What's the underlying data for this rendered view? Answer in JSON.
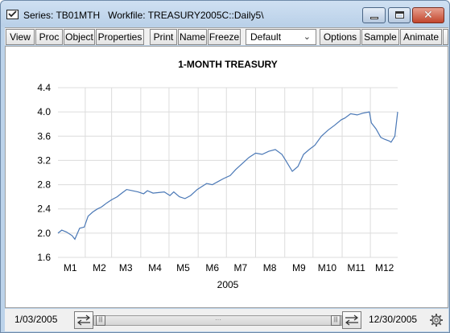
{
  "window": {
    "title": "Series: TB01MTH   Workfile: TREASURY2005C::Daily5\\"
  },
  "toolbar": {
    "buttons": [
      "View",
      "Proc",
      "Object",
      "Properties",
      "Print",
      "Name",
      "Freeze",
      "Options",
      "Sample",
      "Animate"
    ],
    "sample_value": "Default"
  },
  "statusbar": {
    "start_date": "1/03/2005",
    "end_date": "12/30/2005"
  },
  "icons": {
    "window": "checkbox-window-icon",
    "swap": "swap-arrows-icon",
    "gear": "gear-icon",
    "dropdown": "chevron-down-icon"
  },
  "colors": {
    "series_line": "#4a78b6",
    "grid": "#dcdcdc"
  },
  "chart_data": {
    "type": "line",
    "title": "1-MONTH TREASURY",
    "xlabel": "2005",
    "ylabel": "",
    "x_tick_labels": [
      "M1",
      "M2",
      "M3",
      "M4",
      "M5",
      "M6",
      "M7",
      "M8",
      "M9",
      "M10",
      "M11",
      "M12"
    ],
    "y_tick_labels": [
      "1.6",
      "2.0",
      "2.4",
      "2.8",
      "3.2",
      "3.6",
      "4.0",
      "4.4"
    ],
    "ylim": [
      1.6,
      4.4
    ],
    "grid": true,
    "legend": "none",
    "series": [
      {
        "x": [
          "2005-01-03",
          "2005-01-07",
          "2005-01-12",
          "2005-01-18",
          "2005-01-21",
          "2005-01-26",
          "2005-01-31",
          "2005-02-04",
          "2005-02-09",
          "2005-02-14",
          "2005-02-18",
          "2005-02-24",
          "2005-03-01",
          "2005-03-07",
          "2005-03-11",
          "2005-03-17",
          "2005-03-23",
          "2005-03-29",
          "2005-04-04",
          "2005-04-08",
          "2005-04-14",
          "2005-04-20",
          "2005-04-26",
          "2005-05-02",
          "2005-05-06",
          "2005-05-12",
          "2005-05-18",
          "2005-05-24",
          "2005-05-31",
          "2005-06-06",
          "2005-06-10",
          "2005-06-16",
          "2005-06-22",
          "2005-06-28",
          "2005-07-05",
          "2005-07-11",
          "2005-07-18",
          "2005-07-25",
          "2005-08-01",
          "2005-08-08",
          "2005-08-15",
          "2005-08-22",
          "2005-08-29",
          "2005-09-02",
          "2005-09-09",
          "2005-09-15",
          "2005-09-21",
          "2005-09-27",
          "2005-10-03",
          "2005-10-10",
          "2005-10-17",
          "2005-10-24",
          "2005-10-31",
          "2005-11-04",
          "2005-11-10",
          "2005-11-17",
          "2005-11-23",
          "2005-11-30",
          "2005-12-02",
          "2005-12-07",
          "2005-12-12",
          "2005-12-16",
          "2005-12-21",
          "2005-12-23",
          "2005-12-27",
          "2005-12-30"
        ],
        "values": [
          2.0,
          2.05,
          2.02,
          1.96,
          1.9,
          2.08,
          2.1,
          2.28,
          2.35,
          2.4,
          2.43,
          2.5,
          2.55,
          2.6,
          2.65,
          2.72,
          2.7,
          2.68,
          2.65,
          2.7,
          2.66,
          2.67,
          2.68,
          2.62,
          2.68,
          2.6,
          2.57,
          2.62,
          2.72,
          2.78,
          2.82,
          2.8,
          2.85,
          2.9,
          2.95,
          3.05,
          3.15,
          3.25,
          3.32,
          3.3,
          3.35,
          3.38,
          3.3,
          3.2,
          3.02,
          3.1,
          3.3,
          3.38,
          3.45,
          3.6,
          3.7,
          3.78,
          3.87,
          3.9,
          3.97,
          3.95,
          3.98,
          4.0,
          3.82,
          3.72,
          3.58,
          3.55,
          3.52,
          3.5,
          3.6,
          4.0
        ]
      }
    ]
  }
}
